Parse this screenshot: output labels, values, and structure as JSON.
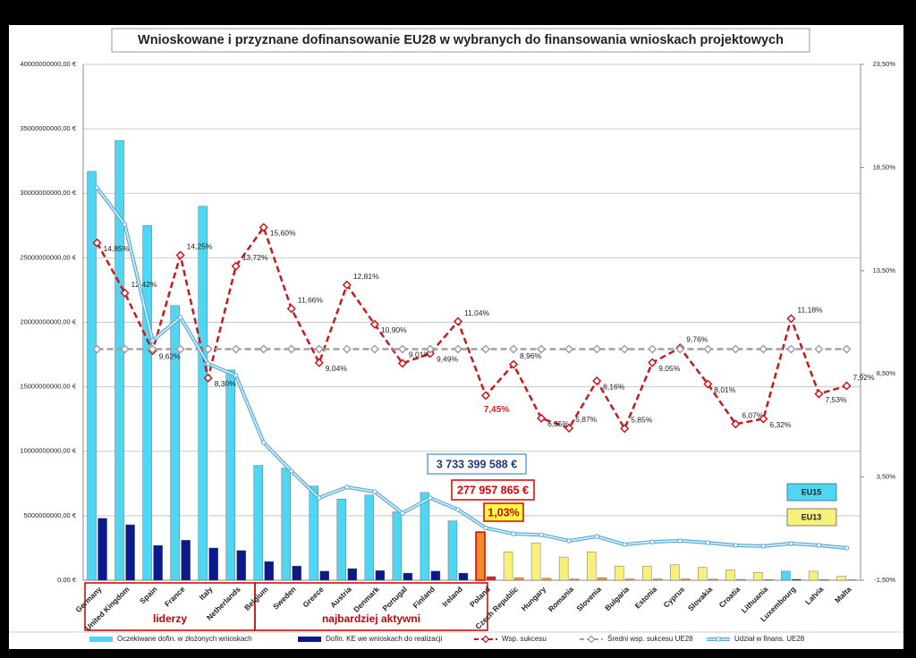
{
  "chart_data": {
    "type": "bar",
    "title": "Wnioskowane i przyznane dofinansowanie EU28 w wybranych do finansowania wnioskach projektowych",
    "categories": [
      "Germany",
      "United Kingdom",
      "Spain",
      "France",
      "Italy",
      "Netherlands",
      "Belgium",
      "Sweden",
      "Greece",
      "Austria",
      "Denmark",
      "Portugal",
      "Finland",
      "Ireland",
      "Poland",
      "Czech Republic",
      "Hungary",
      "Romania",
      "Slovenia",
      "Bulgaria",
      "Estonia",
      "Cyprus",
      "Slovakia",
      "Croatia",
      "Lithuania",
      "Luxembourg",
      "Latvia",
      "Malta"
    ],
    "series": [
      {
        "name": "Oczekiwane dofin. w złożonych wnioskach",
        "type": "bar",
        "color": "#4fd6f2",
        "colors": [
          "#4fd6f2",
          "#4fd6f2",
          "#4fd6f2",
          "#4fd6f2",
          "#4fd6f2",
          "#4fd6f2",
          "#4fd6f2",
          "#4fd6f2",
          "#4fd6f2",
          "#4fd6f2",
          "#4fd6f2",
          "#4fd6f2",
          "#4fd6f2",
          "#4fd6f2",
          "#f28c28",
          "#f7f07a",
          "#f7f07a",
          "#f7f07a",
          "#f7f07a",
          "#f7f07a",
          "#f7f07a",
          "#f7f07a",
          "#f7f07a",
          "#f7f07a",
          "#f7f07a",
          "#4fd6f2",
          "#f7f07a",
          "#f7f07a"
        ],
        "values": [
          31700000000,
          34100000000,
          27500000000,
          21300000000,
          29000000000,
          16300000000,
          8900000000,
          8700000000,
          7300000000,
          6300000000,
          6600000000,
          5300000000,
          6800000000,
          4600000000,
          3733399588,
          2200000000,
          2900000000,
          1800000000,
          2200000000,
          1100000000,
          1100000000,
          1200000000,
          1000000000,
          800000000,
          600000000,
          700000000,
          700000000,
          300000000
        ]
      },
      {
        "name": "Dofin. KE we wnioskach do realizacji",
        "type": "bar",
        "color": "#0a1a8c",
        "colors": [
          "#0a1a8c",
          "#0a1a8c",
          "#0a1a8c",
          "#0a1a8c",
          "#0a1a8c",
          "#0a1a8c",
          "#0a1a8c",
          "#0a1a8c",
          "#0a1a8c",
          "#0a1a8c",
          "#0a1a8c",
          "#0a1a8c",
          "#0a1a8c",
          "#0a1a8c",
          "#e0201c",
          "#f0a020",
          "#f0a020",
          "#f0a020",
          "#f0a020",
          "#f0a020",
          "#f0a020",
          "#f0a020",
          "#f0a020",
          "#f0a020",
          "#f0a020",
          "#0a1a8c",
          "#f0a020",
          "#f0a020"
        ],
        "values": [
          4800000000,
          4300000000,
          2700000000,
          3100000000,
          2500000000,
          2300000000,
          1450000000,
          1100000000,
          700000000,
          900000000,
          750000000,
          550000000,
          700000000,
          550000000,
          277957865,
          200000000,
          150000000,
          100000000,
          200000000,
          100000000,
          100000000,
          100000000,
          80000000,
          70000000,
          50000000,
          70000000,
          50000000,
          30000000
        ]
      },
      {
        "name": "Wsp. sukcesu",
        "type": "line",
        "axis": "y2",
        "color": "#c8191e",
        "dash": true,
        "marker": "diamond",
        "values": [
          14.85,
          12.42,
          9.62,
          14.25,
          8.3,
          13.72,
          15.6,
          11.66,
          9.04,
          12.81,
          10.9,
          9.01,
          9.49,
          11.04,
          7.45,
          8.96,
          6.35,
          5.87,
          8.16,
          5.85,
          9.05,
          9.76,
          8.01,
          6.07,
          6.32,
          11.18,
          7.53,
          7.92
        ],
        "value_labels": [
          "14,85%",
          "12,42%",
          "9,62%",
          "14,25%",
          "8,30%",
          "13,72%",
          "15,60%",
          "11,66%",
          "9,04%",
          "12,81%",
          "10,90%",
          "9,01%",
          "9,49%",
          "11,04%",
          "7,45%",
          "8,96%",
          "6,35%",
          "5,87%",
          "8,16%",
          "5,85%",
          "9,05%",
          "9,76%",
          "8,01%",
          "6,07%",
          "6,32%",
          "11,18%",
          "7,53%",
          "7,92%"
        ]
      },
      {
        "name": "Średni wsp. sukcesu UE28",
        "type": "line",
        "axis": "y2",
        "color": "#a0a0a0",
        "dash": true,
        "marker": "diamond",
        "values": [
          9.7,
          9.7,
          9.7,
          9.7,
          9.7,
          9.7,
          9.7,
          9.7,
          9.7,
          9.7,
          9.7,
          9.7,
          9.7,
          9.7,
          9.7,
          9.7,
          9.7,
          9.7,
          9.7,
          9.7,
          9.7,
          9.7,
          9.7,
          9.7,
          9.7,
          9.7,
          9.7,
          9.7
        ]
      },
      {
        "name": "Udział w finans. UE28",
        "type": "line",
        "axis": "y2",
        "color": "#5aa9d6",
        "dash": false,
        "marker": "circle",
        "values": [
          17.52,
          15.74,
          10.11,
          11.24,
          8.99,
          8.42,
          5.17,
          3.79,
          2.49,
          3.01,
          2.79,
          1.75,
          2.49,
          1.92,
          1.03,
          0.75,
          0.7,
          0.41,
          0.62,
          0.23,
          0.36,
          0.41,
          0.32,
          0.19,
          0.15,
          0.28,
          0.19,
          0.06
        ]
      }
    ],
    "ylim": [
      0,
      40000000000
    ],
    "yticks": [
      {
        "value": 0,
        "label": "0,00 €"
      },
      {
        "value": 5000000000,
        "label": "5000000000,00 €"
      },
      {
        "value": 10000000000,
        "label": "10000000000,00 €"
      },
      {
        "value": 15000000000,
        "label": "15000000000,00 €"
      },
      {
        "value": 20000000000,
        "label": "20000000000,00 €"
      },
      {
        "value": 25000000000,
        "label": "25000000000,00 €"
      },
      {
        "value": 30000000000,
        "label": "30000000000,00 €"
      },
      {
        "value": 35000000000,
        "label": "35000000000,00 €"
      },
      {
        "value": 40000000000,
        "label": "40000000000,00 €"
      }
    ],
    "y2lim": [
      -1.5,
      23.5
    ],
    "y2ticks": [
      {
        "value": -1.5,
        "label": "-1,50%"
      },
      {
        "value": 3.5,
        "label": "3,50%"
      },
      {
        "value": 8.5,
        "label": "8,50%"
      },
      {
        "value": 13.5,
        "label": "13,50%"
      },
      {
        "value": 18.5,
        "label": "18,50%"
      },
      {
        "value": 23.5,
        "label": "23,50%"
      }
    ],
    "grid": true,
    "legend": "bottom",
    "annotations": [
      "3 733 399 588 €",
      "277 957 865 €",
      "1,03%"
    ],
    "group_labels": [
      "liderzy",
      "najbardziej aktywni"
    ],
    "badges": [
      {
        "text": "EU15",
        "color": "#4fd6f2"
      },
      {
        "text": "EU13",
        "color": "#f7f07a"
      }
    ]
  }
}
